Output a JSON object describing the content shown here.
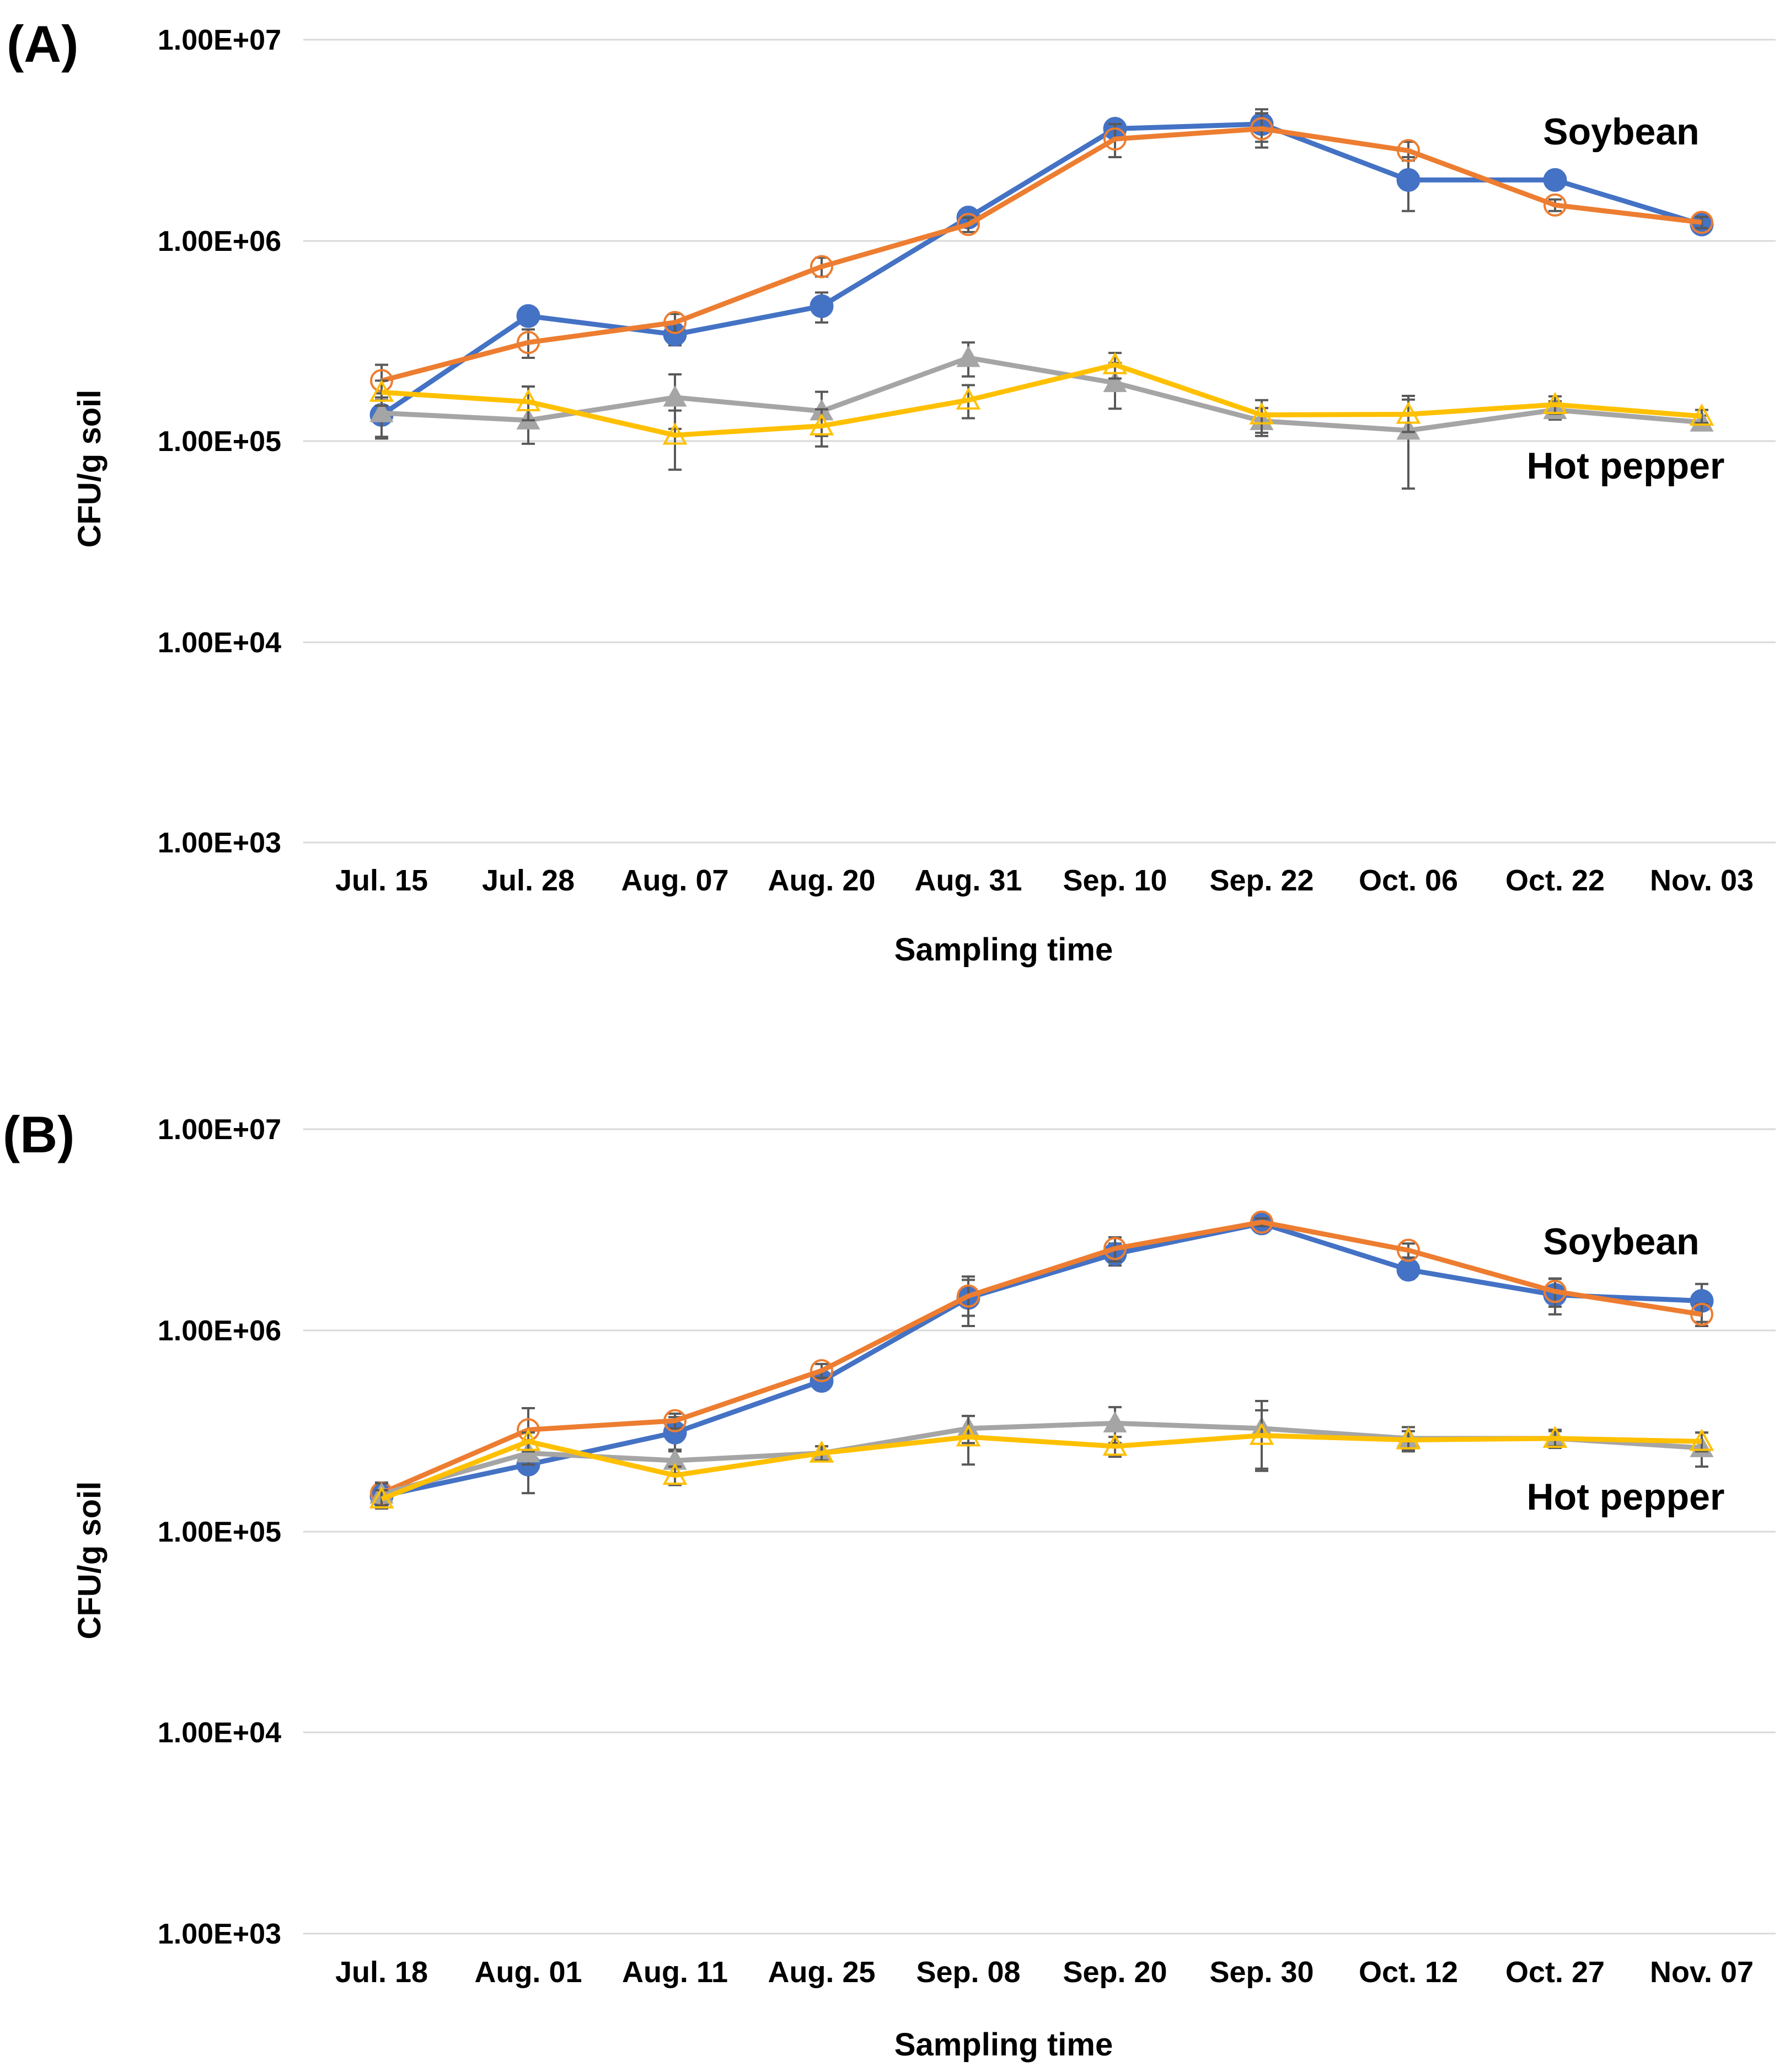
{
  "chart_data": [
    {
      "type": "line",
      "panel_label": "(A)",
      "ylabel": "CFU/g soil",
      "xlabel": "Sampling time",
      "y_scale": "log",
      "ylim": [
        1000,
        10000000
      ],
      "yticks": [
        1000,
        10000,
        100000,
        1000000,
        10000000
      ],
      "ytick_labels": [
        "1.00E+03",
        "1.00E+04",
        "1.00E+05",
        "1.00E+06",
        "1.00E+07"
      ],
      "grid": true,
      "categories": [
        "Jul. 15",
        "Jul. 28",
        "Aug. 07",
        "Aug. 20",
        "Aug. 31",
        "Sep. 10",
        "Sep. 22",
        "Oct. 06",
        "Oct. 22",
        "Nov. 03"
      ],
      "annotations": [
        {
          "text": "Soybean",
          "position": "upper-right"
        },
        {
          "text": "Hot pepper",
          "position": "middle-right"
        }
      ],
      "series": [
        {
          "group": "Soybean",
          "color": "#4472c4",
          "marker": "circle-filled",
          "values": [
            135000,
            420000,
            340000,
            470000,
            1300000,
            3600000,
            3800000,
            2000000,
            2000000,
            1200000
          ],
          "errors": [
            30000,
            40000,
            40000,
            80000,
            120000,
            300000,
            700000,
            600000,
            150000,
            80000
          ]
        },
        {
          "group": "Soybean",
          "color": "#ed7d31",
          "marker": "circle-open",
          "values": [
            200000,
            310000,
            390000,
            740000,
            1200000,
            3200000,
            3600000,
            2800000,
            1500000,
            1230000
          ],
          "errors": [
            40000,
            50000,
            40000,
            80000,
            100000,
            600000,
            700000,
            300000,
            100000,
            80000
          ]
        },
        {
          "group": "Hot pepper",
          "color": "#a5a5a5",
          "marker": "triangle-filled",
          "values": [
            138000,
            127000,
            165000,
            141000,
            260000,
            195000,
            126000,
            113000,
            143000,
            124000
          ],
          "errors": [
            35000,
            30000,
            50000,
            35000,
            50000,
            50000,
            20000,
            55000,
            15000,
            10000
          ]
        },
        {
          "group": "Hot pepper",
          "color": "#ffc000",
          "marker": "triangle-open",
          "values": [
            175000,
            157000,
            107000,
            119000,
            160000,
            240000,
            135000,
            136000,
            152000,
            133000
          ],
          "errors": [
            25000,
            30000,
            35000,
            25000,
            30000,
            35000,
            25000,
            25000,
            15000,
            10000
          ]
        }
      ]
    },
    {
      "type": "line",
      "panel_label": "(B)",
      "ylabel": "CFU/g soil",
      "xlabel": "Sampling time",
      "y_scale": "log",
      "ylim": [
        1000,
        10000000
      ],
      "yticks": [
        1000,
        10000,
        100000,
        1000000,
        10000000
      ],
      "ytick_labels": [
        "1.00E+03",
        "1.00E+04",
        "1.00E+05",
        "1.00E+06",
        "1.00E+07"
      ],
      "grid": true,
      "categories": [
        "Jul. 18",
        "Aug. 01",
        "Aug. 11",
        "Aug. 25",
        "Sep. 08",
        "Sep. 20",
        "Sep. 30",
        "Oct. 12",
        "Oct. 27",
        "Nov. 07"
      ],
      "annotations": [
        {
          "text": "Soybean",
          "position": "upper-right"
        },
        {
          "text": "Hot pepper",
          "position": "middle-right"
        }
      ],
      "series": [
        {
          "group": "Soybean",
          "color": "#4472c4",
          "marker": "circle-filled",
          "values": [
            150000,
            215000,
            310000,
            560000,
            1450000,
            2400000,
            3400000,
            2000000,
            1500000,
            1400000
          ],
          "errors": [
            20000,
            60000,
            60000,
            50000,
            400000,
            300000,
            150000,
            200000,
            300000,
            300000
          ]
        },
        {
          "group": "Soybean",
          "color": "#ed7d31",
          "marker": "circle-open",
          "values": [
            155000,
            320000,
            355000,
            630000,
            1480000,
            2550000,
            3450000,
            2500000,
            1560000,
            1200000
          ],
          "errors": [
            20000,
            90000,
            30000,
            50000,
            300000,
            350000,
            150000,
            200000,
            250000,
            150000
          ]
        },
        {
          "group": "Hot pepper",
          "color": "#a5a5a5",
          "marker": "triangle-filled",
          "values": [
            153000,
            245000,
            225000,
            245000,
            325000,
            345000,
            325000,
            290000,
            290000,
            260000
          ],
          "errors": [
            20000,
            30000,
            30000,
            20000,
            50000,
            70000,
            120000,
            40000,
            30000,
            50000
          ]
        },
        {
          "group": "Hot pepper",
          "color": "#ffc000",
          "marker": "triangle-open",
          "values": [
            145000,
            280000,
            190000,
            245000,
            295000,
            265000,
            300000,
            285000,
            290000,
            280000
          ],
          "errors": [
            15000,
            30000,
            20000,
            20000,
            80000,
            30000,
            100000,
            30000,
            25000,
            30000
          ]
        }
      ]
    }
  ]
}
